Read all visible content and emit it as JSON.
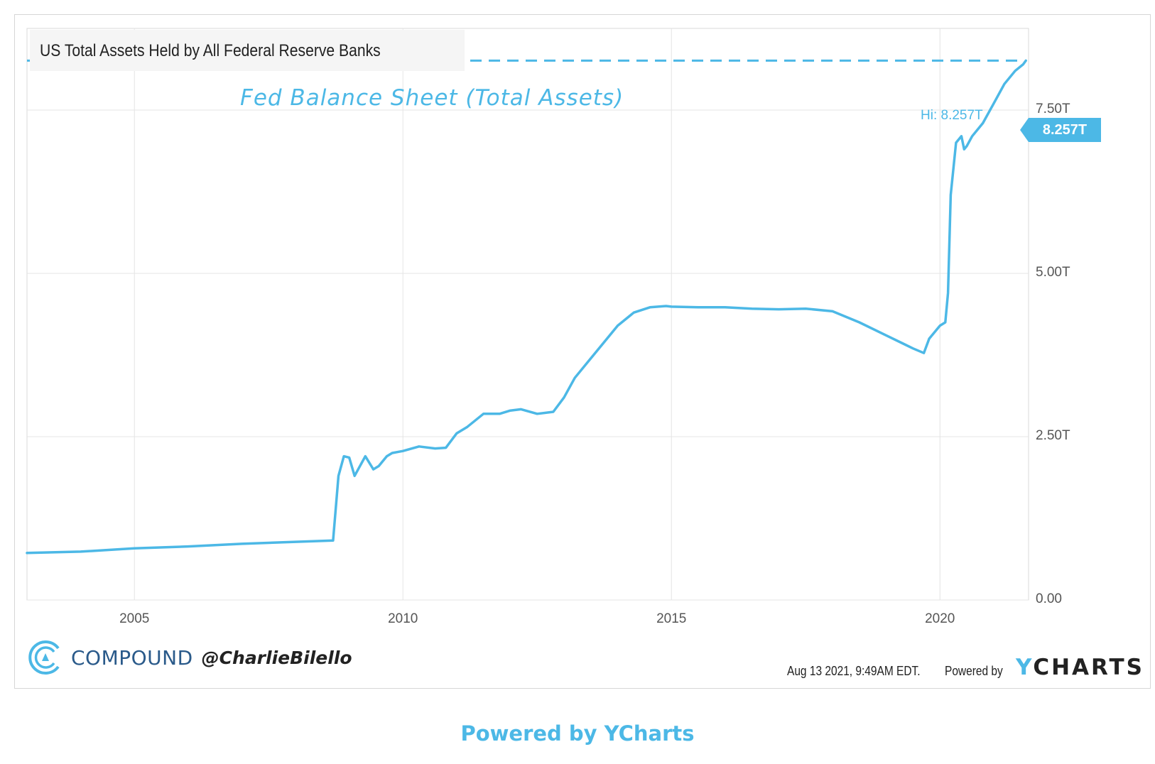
{
  "chart_data": {
    "type": "line",
    "title": "US Total Assets Held by All Federal Reserve Banks",
    "annotation": "Fed Balance Sheet (Total Assets)",
    "series": [
      {
        "name": "",
        "color": "#4cb8e6",
        "x": [
          2003.0,
          2004.0,
          2005.0,
          2006.0,
          2007.0,
          2008.0,
          2008.7,
          2008.8,
          2008.9,
          2009.0,
          2009.1,
          2009.3,
          2009.45,
          2009.55,
          2009.7,
          2009.8,
          2010.0,
          2010.3,
          2010.6,
          2010.8,
          2011.0,
          2011.2,
          2011.5,
          2011.8,
          2012.0,
          2012.2,
          2012.5,
          2012.8,
          2013.0,
          2013.2,
          2013.5,
          2013.8,
          2014.0,
          2014.3,
          2014.6,
          2014.9,
          2015.0,
          2015.5,
          2016.0,
          2016.5,
          2017.0,
          2017.5,
          2018.0,
          2018.5,
          2019.0,
          2019.5,
          2019.7,
          2019.8,
          2020.0,
          2020.1,
          2020.15,
          2020.2,
          2020.3,
          2020.4,
          2020.45,
          2020.5,
          2020.6,
          2020.8,
          2021.0,
          2021.2,
          2021.4,
          2021.55,
          2021.6
        ],
        "y": [
          0.72,
          0.74,
          0.79,
          0.82,
          0.86,
          0.89,
          0.91,
          1.9,
          2.2,
          2.18,
          1.9,
          2.2,
          2.0,
          2.05,
          2.2,
          2.25,
          2.28,
          2.35,
          2.32,
          2.33,
          2.55,
          2.65,
          2.85,
          2.85,
          2.9,
          2.92,
          2.85,
          2.88,
          3.1,
          3.4,
          3.7,
          4.0,
          4.2,
          4.4,
          4.48,
          4.5,
          4.49,
          4.48,
          4.48,
          4.46,
          4.45,
          4.46,
          4.42,
          4.25,
          4.05,
          3.85,
          3.78,
          4.0,
          4.2,
          4.25,
          4.7,
          6.2,
          7.0,
          7.1,
          6.9,
          6.95,
          7.1,
          7.3,
          7.6,
          7.9,
          8.1,
          8.2,
          8.257
        ]
      }
    ],
    "xlim": [
      2003.0,
      2021.65
    ],
    "ylim": [
      0,
      8.75
    ],
    "xticks": [
      "2005",
      "2010",
      "2015",
      "2020"
    ],
    "yticks": [
      "0.00",
      "2.50T",
      "5.00T",
      "7.50T"
    ],
    "hi_label": "Hi: 8.257T",
    "last_value_label": "8.257T",
    "hi_value": 8.257,
    "grid": true,
    "legend": "none"
  },
  "branding": {
    "compound_name": "COMPOUND",
    "handle": "@CharlieBilello",
    "timestamp": "Aug 13 2021, 9:49AM EDT.",
    "powered_small": "Powered by",
    "ycharts_y": "Y",
    "ycharts_rest": "CHARTS",
    "powered_footer": "Powered by YCharts"
  }
}
